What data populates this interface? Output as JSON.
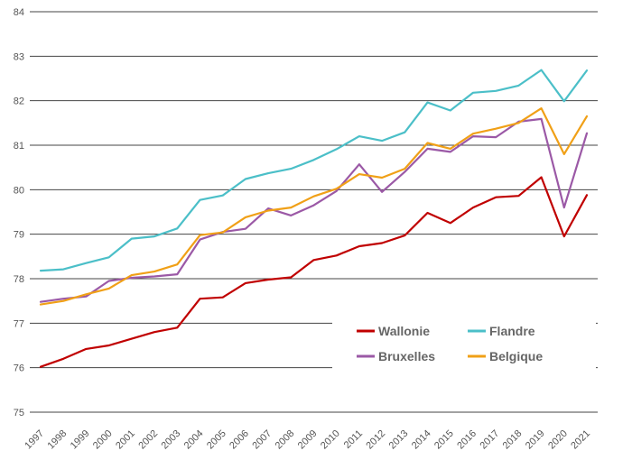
{
  "chart_data": {
    "type": "line",
    "x": [
      "1997",
      "1998",
      "1999",
      "2000",
      "2001",
      "2002",
      "2003",
      "2004",
      "2005",
      "2006",
      "2007",
      "2008",
      "2009",
      "2010",
      "2011",
      "2012",
      "2013",
      "2014",
      "2015",
      "2016",
      "2017",
      "2018",
      "2019",
      "2020",
      "2021"
    ],
    "ylim": [
      75,
      84
    ],
    "yticks": [
      "75",
      "76",
      "77",
      "78",
      "79",
      "80",
      "81",
      "82",
      "83",
      "84"
    ],
    "grid": "horizontal",
    "legend_position": "bottom-right",
    "series": [
      {
        "name": "Wallonie",
        "color": "#c00000",
        "values": [
          76.02,
          76.2,
          76.42,
          76.5,
          76.65,
          76.8,
          76.9,
          77.55,
          77.58,
          77.9,
          77.98,
          78.03,
          78.42,
          78.52,
          78.73,
          78.8,
          78.97,
          79.48,
          79.25,
          79.6,
          79.83,
          79.86,
          80.28,
          78.95,
          79.88
        ]
      },
      {
        "name": "Flandre",
        "color": "#4bbfc8",
        "values": [
          78.18,
          78.21,
          78.35,
          78.48,
          78.9,
          78.95,
          79.13,
          79.77,
          79.87,
          80.24,
          80.37,
          80.47,
          80.67,
          80.91,
          81.2,
          81.1,
          81.29,
          81.96,
          81.78,
          82.18,
          82.22,
          82.34,
          82.69,
          81.99,
          82.68
        ]
      },
      {
        "name": "Bruxelles",
        "color": "#9b59a6",
        "values": [
          77.48,
          77.55,
          77.6,
          77.95,
          78.02,
          78.05,
          78.1,
          78.88,
          79.05,
          79.12,
          79.58,
          79.42,
          79.65,
          79.97,
          80.57,
          79.95,
          80.4,
          80.92,
          80.85,
          81.2,
          81.18,
          81.53,
          81.59,
          79.6,
          81.27
        ]
      },
      {
        "name": "Belgique",
        "color": "#f0a017",
        "values": [
          77.42,
          77.5,
          77.65,
          77.78,
          78.08,
          78.16,
          78.32,
          78.98,
          79.04,
          79.38,
          79.53,
          79.6,
          79.85,
          80.02,
          80.35,
          80.27,
          80.47,
          81.05,
          80.92,
          81.26,
          81.37,
          81.5,
          81.83,
          80.8,
          81.65
        ]
      }
    ]
  }
}
